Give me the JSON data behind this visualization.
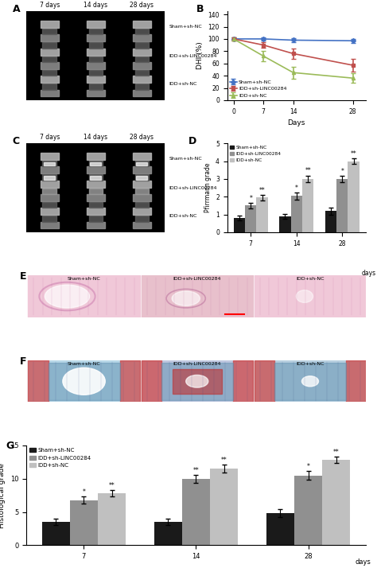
{
  "panel_B": {
    "x": [
      0,
      7,
      14,
      28
    ],
    "sham_nc": [
      100,
      100,
      98,
      97
    ],
    "sham_nc_err": [
      2,
      3,
      3,
      3
    ],
    "idd_linc": [
      100,
      90,
      76,
      57
    ],
    "idd_linc_err": [
      3,
      5,
      8,
      10
    ],
    "idd_nc": [
      100,
      72,
      45,
      36
    ],
    "idd_nc_err": [
      3,
      8,
      10,
      8
    ],
    "xlabel": "Days",
    "ylabel": "DHI (%)",
    "ylim": [
      0,
      145
    ],
    "yticks": [
      0,
      20,
      40,
      60,
      80,
      100,
      120,
      140
    ],
    "legend": [
      "Sham+sh-NC",
      "IDD+sh-LINC00284",
      "IDD+sh-NC"
    ],
    "colors": [
      "#4472c4",
      "#c0504d",
      "#9bbb59"
    ]
  },
  "panel_D": {
    "groups": [
      "7",
      "14",
      "28"
    ],
    "days_label": "days",
    "sham_nc": [
      0.8,
      0.9,
      1.2
    ],
    "sham_nc_err": [
      0.12,
      0.15,
      0.2
    ],
    "idd_linc": [
      1.5,
      2.05,
      3.0
    ],
    "idd_linc_err": [
      0.15,
      0.2,
      0.18
    ],
    "idd_nc": [
      1.95,
      3.0,
      4.0
    ],
    "idd_nc_err": [
      0.15,
      0.2,
      0.15
    ],
    "ylabel": "Pfirrmann grade",
    "ylim": [
      0,
      5
    ],
    "yticks": [
      0,
      1,
      2,
      3,
      4,
      5
    ],
    "legend": [
      "Sham+sh-NC",
      "IDD+sh-LINC00284",
      "IDD+sh-NC"
    ],
    "colors": [
      "#1a1a1a",
      "#909090",
      "#c0c0c0"
    ],
    "stars_linc": [
      "*",
      "*",
      "*"
    ],
    "stars_nc": [
      "**",
      "**",
      "**"
    ]
  },
  "panel_G": {
    "groups": [
      "7",
      "14",
      "28"
    ],
    "days_label": "days",
    "sham_nc": [
      3.5,
      3.5,
      4.8
    ],
    "sham_nc_err": [
      0.5,
      0.5,
      0.6
    ],
    "idd_linc": [
      6.8,
      10.0,
      10.5
    ],
    "idd_linc_err": [
      0.5,
      0.6,
      0.7
    ],
    "idd_nc": [
      7.8,
      11.5,
      12.8
    ],
    "idd_nc_err": [
      0.5,
      0.6,
      0.5
    ],
    "ylabel": "Histological grade",
    "ylim": [
      0,
      15
    ],
    "yticks": [
      0,
      5,
      10,
      15
    ],
    "legend": [
      "Sham+sh-NC",
      "IDD+sh-LINC00284",
      "IDD+sh-NC"
    ],
    "colors": [
      "#1a1a1a",
      "#909090",
      "#c0c0c0"
    ],
    "stars_linc": [
      "*",
      "**",
      "*"
    ],
    "stars_nc": [
      "**",
      "**",
      "**"
    ]
  },
  "panel_A_labels": [
    "7 days",
    "14 days",
    "28 days"
  ],
  "panel_A_side_labels": [
    "Sham+sh-NC",
    "IDD+sh-LINC00284",
    "IDD+sh-NC"
  ],
  "panel_C_labels": [
    "7 days",
    "14 days",
    "28 days"
  ],
  "panel_C_side_labels": [
    "Sham+sh-NC",
    "IDD+sh-LINC00284",
    "IDD+sh-NC"
  ],
  "panel_E_labels": [
    "Sham+sh-NC",
    "IDD+sh-LINC00284",
    "IDD+sh-NC"
  ],
  "panel_F_labels": [
    "Sham+sh-NC",
    "IDD+sh-LINC00284",
    "IDD+sh-NC"
  ]
}
